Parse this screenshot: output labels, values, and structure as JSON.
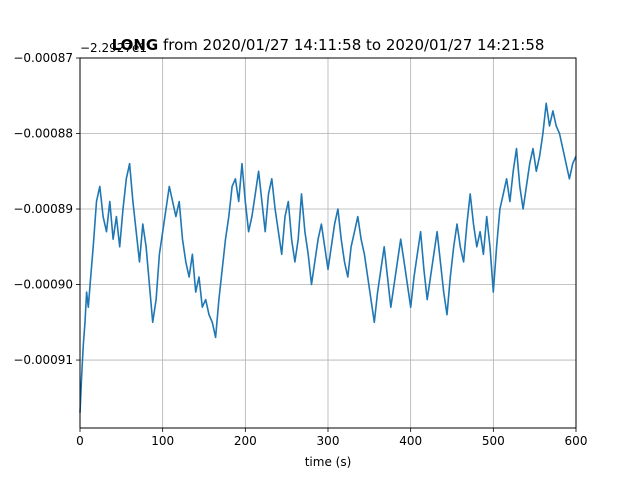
{
  "chart_data": {
    "type": "line",
    "title": "LONG from 2020/01/27 14:11:58 to 2020/01/27 14:21:58",
    "title_bold_part": "LONG",
    "title_rest": " from 2020/01/27 14:11:58 to 2020/01/27 14:21:58",
    "offset_label": "−2.2927e1",
    "xlabel": "time (s)",
    "ylabel": "",
    "xlim": [
      0,
      600
    ],
    "ylim": [
      -0.000919,
      -0.00087
    ],
    "grid": true,
    "x_ticks": [
      0,
      100,
      200,
      300,
      400,
      500,
      600
    ],
    "x_tick_labels": [
      "0",
      "100",
      "200",
      "300",
      "400",
      "500",
      "600"
    ],
    "y_ticks": [
      -0.00091,
      -0.0009,
      -0.00089,
      -0.00088,
      -0.00087
    ],
    "y_tick_labels": [
      "−0.00091",
      "−0.00090",
      "−0.00089",
      "−0.00088",
      "−0.00087"
    ],
    "series": [
      {
        "color": "#1f77b4",
        "x": [
          0,
          2,
          4,
          6,
          8,
          10,
          13,
          16,
          20,
          24,
          28,
          32,
          36,
          40,
          44,
          48,
          52,
          56,
          60,
          64,
          68,
          72,
          76,
          80,
          84,
          88,
          92,
          96,
          100,
          104,
          108,
          112,
          116,
          120,
          124,
          128,
          132,
          136,
          140,
          144,
          148,
          152,
          156,
          160,
          164,
          168,
          172,
          176,
          180,
          184,
          188,
          192,
          196,
          200,
          204,
          208,
          212,
          216,
          220,
          224,
          228,
          232,
          236,
          240,
          244,
          248,
          252,
          256,
          260,
          264,
          268,
          272,
          276,
          280,
          284,
          288,
          292,
          296,
          300,
          304,
          308,
          312,
          316,
          320,
          324,
          328,
          332,
          336,
          340,
          344,
          348,
          352,
          356,
          360,
          364,
          368,
          372,
          376,
          380,
          384,
          388,
          392,
          396,
          400,
          404,
          408,
          412,
          416,
          420,
          424,
          428,
          432,
          436,
          440,
          444,
          448,
          452,
          456,
          460,
          464,
          468,
          472,
          476,
          480,
          484,
          488,
          492,
          496,
          500,
          504,
          508,
          512,
          516,
          520,
          524,
          528,
          532,
          536,
          540,
          544,
          548,
          552,
          556,
          560,
          564,
          568,
          572,
          576,
          580,
          584,
          588,
          592,
          596,
          600
        ],
        "y": [
          -0.000917,
          -0.000912,
          -0.000908,
          -0.000905,
          -0.000901,
          -0.000903,
          -0.000899,
          -0.000895,
          -0.000889,
          -0.000887,
          -0.000891,
          -0.000893,
          -0.000889,
          -0.000894,
          -0.000891,
          -0.000895,
          -0.00089,
          -0.000886,
          -0.000884,
          -0.000889,
          -0.000893,
          -0.000897,
          -0.000892,
          -0.000895,
          -0.0009,
          -0.000905,
          -0.000902,
          -0.000896,
          -0.000893,
          -0.00089,
          -0.000887,
          -0.000889,
          -0.000891,
          -0.000889,
          -0.000894,
          -0.000897,
          -0.000899,
          -0.000896,
          -0.000901,
          -0.000899,
          -0.000903,
          -0.000902,
          -0.000904,
          -0.000905,
          -0.000907,
          -0.000902,
          -0.000898,
          -0.000894,
          -0.000891,
          -0.000887,
          -0.000886,
          -0.000889,
          -0.000884,
          -0.000889,
          -0.000893,
          -0.000891,
          -0.000888,
          -0.000885,
          -0.000889,
          -0.000893,
          -0.000888,
          -0.000886,
          -0.00089,
          -0.000893,
          -0.000896,
          -0.000891,
          -0.000889,
          -0.000894,
          -0.000897,
          -0.000894,
          -0.000888,
          -0.000893,
          -0.000896,
          -0.0009,
          -0.000897,
          -0.000894,
          -0.000892,
          -0.000895,
          -0.000898,
          -0.000895,
          -0.000892,
          -0.00089,
          -0.000894,
          -0.000897,
          -0.000899,
          -0.000895,
          -0.000893,
          -0.000891,
          -0.000894,
          -0.000896,
          -0.000899,
          -0.000902,
          -0.000905,
          -0.000901,
          -0.000898,
          -0.000895,
          -0.000899,
          -0.000903,
          -0.0009,
          -0.000897,
          -0.000894,
          -0.000897,
          -0.0009,
          -0.000903,
          -0.000899,
          -0.000896,
          -0.000893,
          -0.000898,
          -0.000902,
          -0.000899,
          -0.000896,
          -0.000893,
          -0.000897,
          -0.000901,
          -0.000904,
          -0.000899,
          -0.000895,
          -0.000892,
          -0.000895,
          -0.000897,
          -0.000892,
          -0.000888,
          -0.000892,
          -0.000895,
          -0.000893,
          -0.000896,
          -0.000891,
          -0.000895,
          -0.000901,
          -0.000895,
          -0.00089,
          -0.000888,
          -0.000886,
          -0.000889,
          -0.000885,
          -0.000882,
          -0.000887,
          -0.00089,
          -0.000887,
          -0.000884,
          -0.000882,
          -0.000885,
          -0.000883,
          -0.00088,
          -0.000876,
          -0.000879,
          -0.000877,
          -0.000879,
          -0.00088,
          -0.000882,
          -0.000884,
          -0.000886,
          -0.000884,
          -0.000883
        ]
      }
    ]
  }
}
